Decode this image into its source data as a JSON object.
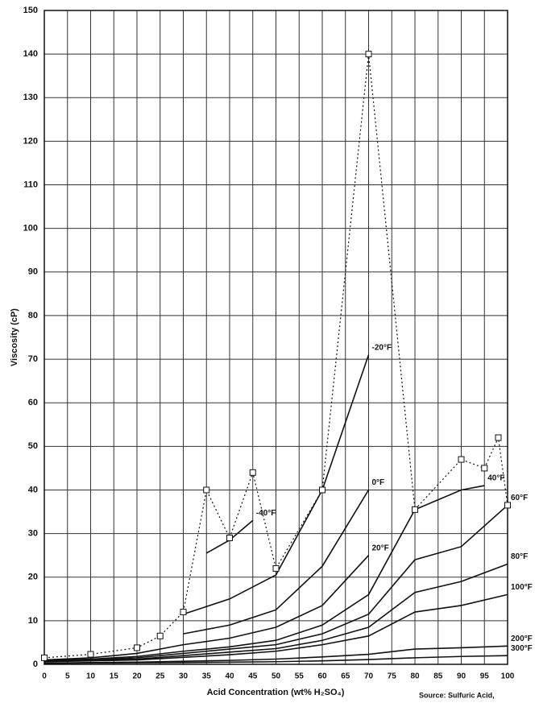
{
  "chart_data": {
    "type": "line",
    "ylabel": "Viscosity (cP)",
    "xlabel": "Acid Concentration (wt% H₂SO₄)",
    "source": "Source: Sulfuric Acid,",
    "xlim": [
      0,
      100
    ],
    "ylim": [
      0,
      150
    ],
    "xticks": [
      0,
      5,
      10,
      15,
      20,
      25,
      30,
      35,
      40,
      45,
      50,
      55,
      60,
      65,
      70,
      75,
      80,
      85,
      90,
      95,
      100
    ],
    "yticks": [
      0,
      10,
      20,
      30,
      40,
      50,
      60,
      70,
      80,
      90,
      100,
      110,
      120,
      130,
      140,
      150
    ],
    "grid": true,
    "series": [
      {
        "name": "-40°F",
        "color": "#111111",
        "x": [
          35,
          40,
          45
        ],
        "values": [
          25.5,
          28.5,
          33
        ]
      },
      {
        "name": "-20°F",
        "color": "#111111",
        "x": [
          30,
          40,
          50,
          60,
          70
        ],
        "values": [
          11.5,
          15,
          20.5,
          40,
          71
        ]
      },
      {
        "name": "0°F",
        "color": "#111111",
        "x": [
          30,
          40,
          50,
          60,
          70
        ],
        "values": [
          7,
          9,
          12.5,
          22.5,
          40
        ]
      },
      {
        "name": "20°F",
        "color": "#111111",
        "x": [
          0,
          10,
          20,
          30,
          40,
          50,
          60,
          70
        ],
        "values": [
          1,
          1.5,
          2.5,
          4.5,
          6,
          8.5,
          13.5,
          25
        ]
      },
      {
        "name": "40°F",
        "color": "#111111",
        "x": [
          0,
          10,
          20,
          30,
          40,
          50,
          60,
          70,
          80,
          90,
          95
        ],
        "values": [
          0.9,
          1.2,
          1.8,
          3,
          4,
          5.5,
          9,
          16,
          35.5,
          40,
          41
        ]
      },
      {
        "name": "60°F",
        "color": "#111111",
        "x": [
          0,
          10,
          20,
          30,
          40,
          50,
          60,
          70,
          80,
          90,
          100
        ],
        "values": [
          0.8,
          1,
          1.5,
          2.5,
          3.5,
          4.5,
          7,
          11.5,
          24,
          27,
          36.5
        ]
      },
      {
        "name": "80°F",
        "color": "#111111",
        "x": [
          0,
          10,
          20,
          30,
          40,
          50,
          60,
          70,
          80,
          90,
          100
        ],
        "values": [
          0.7,
          0.9,
          1.2,
          2,
          2.8,
          3.6,
          5.5,
          8.5,
          16.5,
          19,
          23
        ]
      },
      {
        "name": "100°F",
        "color": "#111111",
        "x": [
          0,
          10,
          20,
          30,
          40,
          50,
          60,
          70,
          80,
          90,
          100
        ],
        "values": [
          0.6,
          0.8,
          1,
          1.6,
          2.2,
          3,
          4.5,
          6.5,
          12,
          13.5,
          16
        ]
      },
      {
        "name": "200°F",
        "color": "#111111",
        "x": [
          0,
          10,
          20,
          30,
          40,
          50,
          60,
          70,
          80,
          90,
          100
        ],
        "values": [
          0.3,
          0.4,
          0.5,
          0.7,
          0.9,
          1.2,
          1.7,
          2.3,
          3.5,
          3.8,
          4.2
        ]
      },
      {
        "name": "300°F",
        "color": "#111111",
        "x": [
          0,
          10,
          20,
          30,
          40,
          50,
          60,
          70,
          80,
          90,
          100
        ],
        "values": [
          0.2,
          0.3,
          0.35,
          0.4,
          0.5,
          0.6,
          0.8,
          1.1,
          1.5,
          1.8,
          2
        ]
      }
    ],
    "freezing": {
      "color": "#111111",
      "dashed": true,
      "markers": "square",
      "x": [
        0,
        10,
        20,
        25,
        30,
        35,
        40,
        45,
        50,
        60,
        70,
        80,
        90,
        95,
        98,
        100
      ],
      "values": [
        1.5,
        2.3,
        3.8,
        6.5,
        12,
        40,
        29,
        44,
        22,
        40,
        140,
        35.5,
        47,
        45,
        52,
        36.5
      ]
    }
  }
}
